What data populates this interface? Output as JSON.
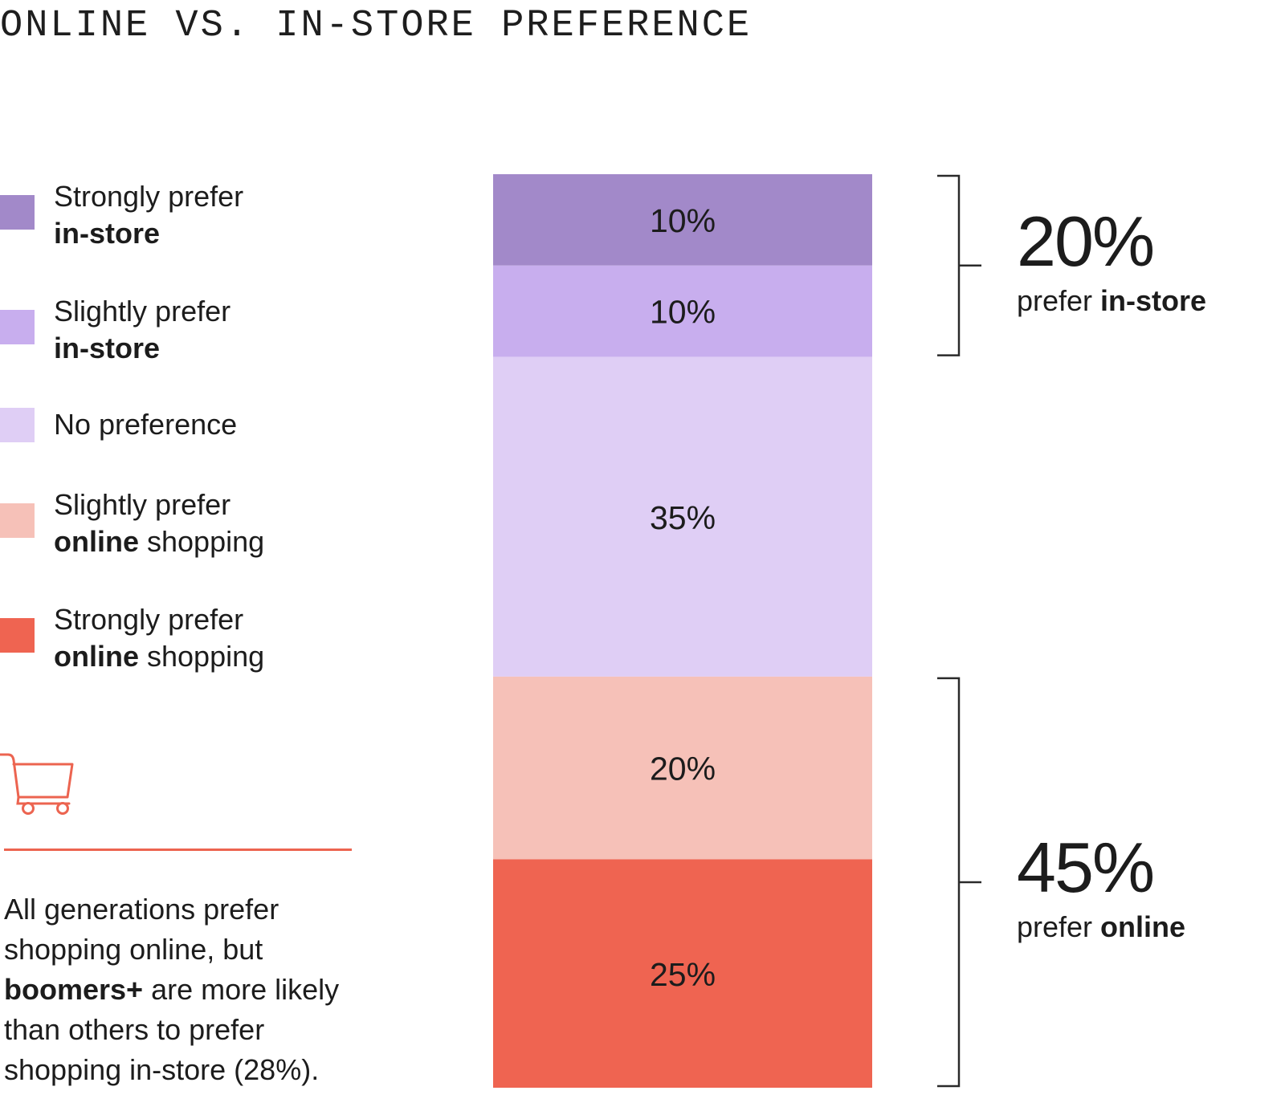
{
  "title": "ONLINE VS. IN-STORE PREFERENCE",
  "legend": [
    {
      "line1": "Strongly prefer",
      "bold": "in-store",
      "rest": "",
      "color": "#a289c9"
    },
    {
      "line1": "Slightly prefer",
      "bold": "in-store",
      "rest": "",
      "color": "#c8aeee"
    },
    {
      "line1": "No preference",
      "bold": "",
      "rest": "",
      "color": "#dfcef5"
    },
    {
      "line1": "Slightly prefer",
      "bold": "online",
      "rest": " shopping",
      "color": "#f6c1b8"
    },
    {
      "line1": "Strongly prefer",
      "bold": "online",
      "rest": " shopping",
      "color": "#ef6451"
    }
  ],
  "cart_icon": "shopping-cart-icon",
  "note": {
    "part1": "All generations prefer shopping online, but ",
    "bold": "boomers+",
    "part2": " are more likely than others to prefer shopping in-store (28%)."
  },
  "summary": {
    "instore": {
      "value": "20%",
      "caption_prefix": "prefer ",
      "caption_bold": "in-store"
    },
    "online": {
      "value": "45%",
      "caption_prefix": "prefer ",
      "caption_bold": "online"
    }
  },
  "chart_data": {
    "type": "bar",
    "stacked": true,
    "orientation": "vertical",
    "title": "ONLINE VS. IN-STORE PREFERENCE",
    "categories": [
      "Strongly prefer in-store",
      "Slightly prefer in-store",
      "No preference",
      "Slightly prefer online shopping",
      "Strongly prefer online shopping"
    ],
    "values": [
      10,
      10,
      35,
      20,
      25
    ],
    "labels": [
      "10%",
      "10%",
      "35%",
      "20%",
      "25%"
    ],
    "colors": [
      "#a289c9",
      "#c8aeee",
      "#dfcef5",
      "#f6c1b8",
      "#ef6451"
    ],
    "groups": [
      {
        "label": "20% prefer in-store",
        "value": 20,
        "members": [
          0,
          1
        ]
      },
      {
        "label": "45% prefer online",
        "value": 45,
        "members": [
          3,
          4
        ]
      }
    ]
  }
}
